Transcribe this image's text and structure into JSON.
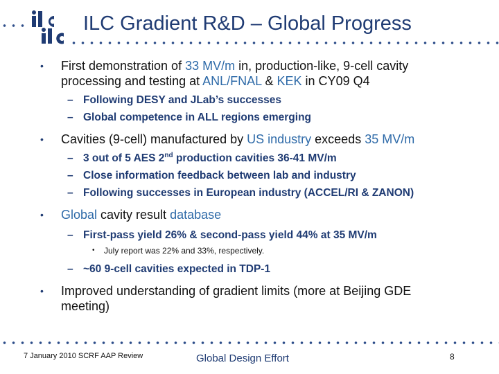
{
  "header": {
    "title": "ILC Gradient R&D – Global Progress",
    "logo_text": "ilc ilc"
  },
  "bullets": {
    "b1": {
      "t1": "First demonstration of ",
      "h1": "33 MV/m",
      "t2": " in, production-like, 9-cell cavity processing and testing at ",
      "h2": "ANL/FNAL",
      "t3": " & ",
      "h3": "KEK",
      "t4": " in CY09 Q4",
      "sub": [
        "Following DESY and JLab’s successes",
        "Global competence in ALL regions emerging"
      ]
    },
    "b2": {
      "t1": "Cavities (9-cell) manufactured by ",
      "h1": "US industry",
      "t2": " exceeds ",
      "h2": "35 MV/m",
      "sub1_pre": "3 out of 5 AES 2",
      "sub1_sup": "nd",
      "sub1_post": " production cavities 36-41 MV/m",
      "sub2": "Close information feedback between lab and industry",
      "sub3": "Following successes in European industry (ACCEL/RI & ZANON)"
    },
    "b3": {
      "h1": "Global",
      "t1": " cavity result ",
      "h2": "database",
      "sub1": "First-pass yield 26% & second-pass yield 44% at 35 MV/m",
      "subsub": "July report was 22% and 33%, respectively.",
      "sub2": "~60 9-cell cavities expected in TDP-1"
    },
    "b4": {
      "text": "Improved understanding of gradient limits (more at Beijing GDE meeting)"
    }
  },
  "footer": {
    "left": "7 January 2010  SCRF AAP Review",
    "center": "Global Design Effort",
    "page": "8"
  },
  "colors": {
    "title": "#1f3b73",
    "highlight": "#2e6aa8",
    "dots": "#2e4e8a"
  }
}
